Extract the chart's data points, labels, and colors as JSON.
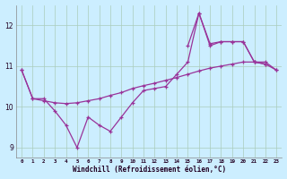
{
  "xlabel": "Windchill (Refroidissement éolien,°C)",
  "background_color": "#cceeff",
  "grid_color": "#aaccbb",
  "line_color": "#993399",
  "hours": [
    0,
    1,
    2,
    3,
    4,
    5,
    6,
    7,
    8,
    9,
    10,
    11,
    12,
    13,
    14,
    15,
    16,
    17,
    18,
    19,
    20,
    21,
    22,
    23
  ],
  "line1": [
    10.9,
    10.2,
    10.2,
    9.9,
    9.55,
    9.0,
    9.75,
    9.55,
    9.4,
    9.75,
    10.1,
    10.4,
    10.45,
    10.5,
    10.8,
    11.1,
    12.3,
    11.5,
    11.6,
    11.6,
    11.6,
    11.1,
    11.1,
    10.9
  ],
  "line2": [
    10.9,
    10.2,
    10.15,
    10.1,
    10.08,
    10.1,
    10.15,
    10.2,
    10.28,
    10.35,
    10.45,
    10.52,
    10.58,
    10.65,
    10.72,
    10.8,
    10.88,
    10.95,
    11.0,
    11.05,
    11.1,
    11.1,
    11.05,
    10.9
  ],
  "line3": [
    null,
    null,
    null,
    null,
    null,
    null,
    null,
    null,
    null,
    null,
    null,
    null,
    null,
    null,
    null,
    11.5,
    12.3,
    11.55,
    11.6,
    11.6,
    11.6,
    11.1,
    11.05,
    null
  ],
  "ylim": [
    8.75,
    12.5
  ],
  "yticks": [
    9,
    10,
    11,
    12
  ],
  "xlim": [
    -0.5,
    23.5
  ],
  "figsize": [
    3.2,
    2.0
  ],
  "dpi": 100
}
